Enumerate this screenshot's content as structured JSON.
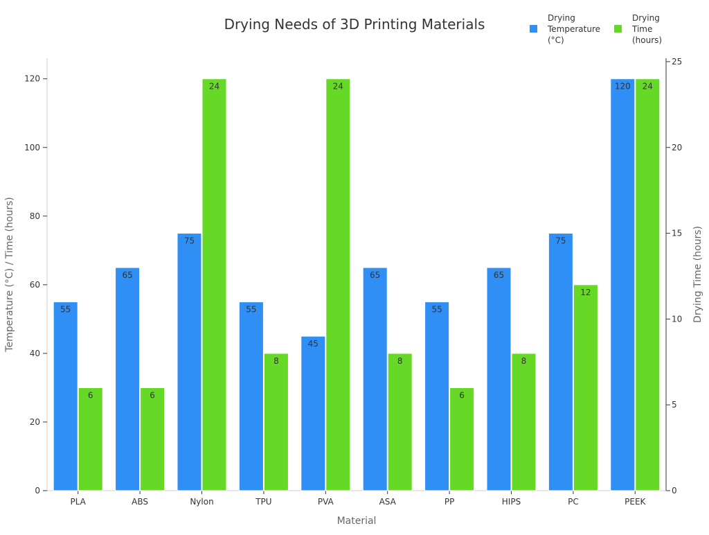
{
  "chart_data": {
    "type": "bar",
    "title": "Drying Needs of 3D Printing Materials",
    "xlabel": "Material",
    "ylabel": "Temperature (°C) / Time (hours)",
    "ylabel_right": "Drying Time (hours)",
    "categories": [
      "PLA",
      "ABS",
      "Nylon",
      "TPU",
      "PVA",
      "ASA",
      "PP",
      "HIPS",
      "PC",
      "PEEK"
    ],
    "series": [
      {
        "name": "Drying Temperature (°C)",
        "legend_lines": [
          "Drying",
          "Temperature",
          "(°C)"
        ],
        "axis": "left",
        "color": "#2f8ff5",
        "values": [
          55,
          65,
          75,
          55,
          45,
          65,
          55,
          65,
          75,
          120
        ]
      },
      {
        "name": "Drying Time (hours)",
        "legend_lines": [
          "Drying",
          "Time",
          "(hours)"
        ],
        "axis": "right",
        "color": "#66d926",
        "values": [
          6,
          6,
          24,
          8,
          24,
          8,
          6,
          8,
          12,
          24
        ]
      }
    ],
    "ylim": [
      0,
      126
    ],
    "yticks": [
      0,
      20,
      40,
      60,
      80,
      100,
      120
    ],
    "ylim_right": [
      0,
      25.2
    ],
    "yticks_right": [
      0,
      5,
      10,
      15,
      20,
      25
    ],
    "legend_position": "top-right",
    "grid": false
  }
}
